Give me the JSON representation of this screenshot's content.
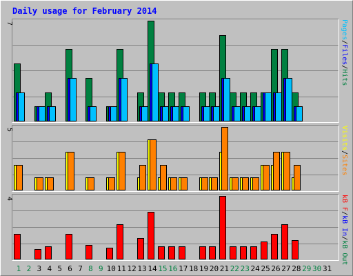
{
  "chart_data": [
    {
      "type": "bar",
      "title": "Daily usage for February 2014",
      "categories": [
        "1",
        "2",
        "3",
        "4",
        "5",
        "6",
        "7",
        "8",
        "9",
        "10",
        "11",
        "12",
        "13",
        "14",
        "15",
        "16",
        "17",
        "18",
        "19",
        "20",
        "21",
        "22",
        "23",
        "24",
        "25",
        "26",
        "27",
        "28",
        "29",
        "30",
        "31"
      ],
      "weekend_days": [
        "1",
        "2",
        "8",
        "9",
        "15",
        "16",
        "22",
        "23",
        "29",
        "30"
      ],
      "ymax_label": "7",
      "ylabel_parts": [
        "Pages",
        "/",
        "Files",
        "/",
        "Hits"
      ],
      "ylabel_colors": [
        "#00c0ff",
        "#000000",
        "#0000ff",
        "#000000",
        "#008040"
      ],
      "series": [
        {
          "name": "Hits",
          "color": "#008040",
          "values": [
            4,
            0,
            1,
            2,
            0,
            5,
            0,
            3,
            0,
            1,
            5,
            0,
            2,
            7,
            2,
            2,
            2,
            0,
            2,
            2,
            6,
            2,
            2,
            2,
            2,
            5,
            5,
            2,
            0,
            0,
            0
          ]
        },
        {
          "name": "Files",
          "color": "#0000ff",
          "values": [
            2,
            0,
            1,
            1,
            0,
            3,
            0,
            1,
            0,
            1,
            3,
            0,
            1,
            4,
            1,
            1,
            1,
            0,
            1,
            1,
            3,
            1,
            1,
            1,
            2,
            2,
            3,
            1,
            0,
            0,
            0
          ]
        },
        {
          "name": "Pages",
          "color": "#00c0ff",
          "values": [
            2,
            0,
            1,
            1,
            0,
            3,
            0,
            1,
            0,
            1,
            3,
            0,
            1,
            4,
            1,
            1,
            1,
            0,
            1,
            1,
            3,
            1,
            1,
            1,
            2,
            2,
            3,
            1,
            0,
            0,
            0
          ]
        }
      ]
    },
    {
      "type": "bar",
      "ymax_label": "5",
      "ylabel_parts": [
        "Visits",
        "/",
        "Sites"
      ],
      "ylabel_colors": [
        "#ffff00",
        "#000000",
        "#ff8000"
      ],
      "series": [
        {
          "name": "Visits",
          "color": "#ffff00",
          "values": [
            2,
            0,
            1,
            1,
            0,
            3,
            0,
            1,
            0,
            1,
            3,
            0,
            1,
            4,
            1,
            1,
            1,
            0,
            1,
            1,
            3,
            1,
            1,
            1,
            2,
            2,
            3,
            1,
            0,
            0,
            0
          ]
        },
        {
          "name": "Sites",
          "color": "#ff8000",
          "values": [
            2,
            0,
            1,
            1,
            0,
            3,
            0,
            1,
            0,
            1,
            3,
            0,
            2,
            4,
            2,
            1,
            1,
            0,
            1,
            1,
            5,
            1,
            1,
            1,
            2,
            3,
            3,
            2,
            0,
            0,
            0
          ]
        }
      ]
    },
    {
      "type": "bar",
      "ymax_label": "4",
      "ylabel_parts": [
        "kB F",
        "/",
        "kB In",
        "/",
        "kB Out"
      ],
      "ylabel_colors": [
        "#ff0000",
        "#000000",
        "#0000ff",
        "#000000",
        "#008040"
      ],
      "ylim": [
        0,
        4
      ],
      "series": [
        {
          "name": "kB F",
          "color": "#ff0000",
          "values": [
            1.6,
            0,
            0.6,
            0.8,
            0,
            1.6,
            0,
            0.9,
            0,
            0.7,
            2.2,
            0,
            1.3,
            3.0,
            0.8,
            0.8,
            0.8,
            0,
            0.8,
            0.8,
            4.0,
            0.8,
            0.8,
            0.8,
            1.1,
            1.6,
            2.2,
            1.2,
            0,
            0,
            0
          ]
        }
      ]
    }
  ]
}
